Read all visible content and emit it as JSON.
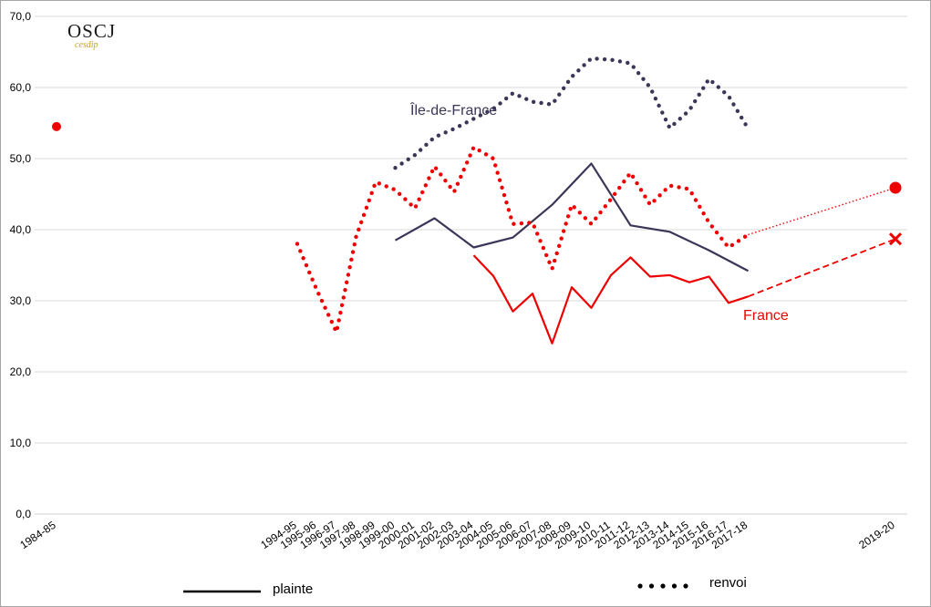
{
  "logo": {
    "main": "OSCJ",
    "sub": "cesdip"
  },
  "annotations": {
    "idf": "Île-de-France",
    "france": "France"
  },
  "legend": {
    "plainte": "plainte",
    "renvoi": "renvoi"
  },
  "colors": {
    "idf": "#3a3658",
    "france": "#ee0000",
    "grid": "#d9d9d9"
  },
  "chart_data": {
    "type": "line",
    "ylim": [
      0,
      70
    ],
    "yticks": [
      "0,0",
      "10,0",
      "20,0",
      "30,0",
      "40,0",
      "50,0",
      "60,0",
      "70,0"
    ],
    "categories": [
      "1984-85",
      "1994-95",
      "1995-96",
      "1996-97",
      "1997-98",
      "1998-99",
      "1999-00",
      "2000-01",
      "2001-02",
      "2002-03",
      "2003-04",
      "2004-05",
      "2005-06",
      "2006-07",
      "2007-08",
      "2008-09",
      "2009-10",
      "2010-11",
      "2011-12",
      "2012-13",
      "2013-14",
      "2014-15",
      "2015-16",
      "2016-17",
      "2017-18",
      "2019-20"
    ],
    "grid": true,
    "series": [
      {
        "name": "plainte",
        "group": "Île-de-France",
        "style": "solid",
        "color": "#3a3658",
        "points": [
          [
            "1999-00",
            38.5
          ],
          [
            "2001-02",
            41.6
          ],
          [
            "2003-04",
            37.5
          ],
          [
            "2005-06",
            38.9
          ],
          [
            "2007-08",
            43.5
          ],
          [
            "2009-10",
            49.3
          ],
          [
            "2011-12",
            40.6
          ],
          [
            "2013-14",
            39.7
          ],
          [
            "2015-16",
            37.1
          ],
          [
            "2017-18",
            34.2
          ]
        ]
      },
      {
        "name": "renvoi",
        "group": "Île-de-France",
        "style": "dotted",
        "color": "#3a3658",
        "points": [
          [
            "1999-00",
            48.7
          ],
          [
            "2000-01",
            50.5
          ],
          [
            "2001-02",
            53.0
          ],
          [
            "2002-03",
            54.2
          ],
          [
            "2003-04",
            55.6
          ],
          [
            "2004-05",
            57.0
          ],
          [
            "2005-06",
            59.2
          ],
          [
            "2006-07",
            58.0
          ],
          [
            "2007-08",
            57.6
          ],
          [
            "2008-09",
            61.5
          ],
          [
            "2009-10",
            64.1
          ],
          [
            "2010-11",
            63.9
          ],
          [
            "2011-12",
            63.4
          ],
          [
            "2012-13",
            60.0
          ],
          [
            "2013-14",
            54.3
          ],
          [
            "2014-15",
            56.8
          ],
          [
            "2015-16",
            61.2
          ],
          [
            "2016-17",
            58.8
          ],
          [
            "2017-18",
            54.2
          ]
        ]
      },
      {
        "name": "plainte",
        "group": "France",
        "style": "solid",
        "color": "#ee0000",
        "points": [
          [
            "2003-04",
            36.4
          ],
          [
            "2004-05",
            33.5
          ],
          [
            "2005-06",
            28.5
          ],
          [
            "2006-07",
            31.0
          ],
          [
            "2007-08",
            24.0
          ],
          [
            "2008-09",
            31.9
          ],
          [
            "2009-10",
            29.0
          ],
          [
            "2010-11",
            33.6
          ],
          [
            "2011-12",
            36.1
          ],
          [
            "2012-13",
            33.4
          ],
          [
            "2013-14",
            33.6
          ],
          [
            "2014-15",
            32.6
          ],
          [
            "2015-16",
            33.4
          ],
          [
            "2016-17",
            29.7
          ],
          [
            "2017-18",
            30.6
          ]
        ]
      },
      {
        "name": "renvoi",
        "group": "France",
        "style": "dotted",
        "color": "#ee0000",
        "points": [
          [
            "1994-95",
            38.0
          ],
          [
            "1995-96",
            31.5
          ],
          [
            "1996-97",
            25.6
          ],
          [
            "1997-98",
            39.0
          ],
          [
            "1998-99",
            46.7
          ],
          [
            "1999-00",
            45.6
          ],
          [
            "2000-01",
            43.0
          ],
          [
            "2001-02",
            48.9
          ],
          [
            "2002-03",
            45.3
          ],
          [
            "2003-04",
            51.6
          ],
          [
            "2004-05",
            50.0
          ],
          [
            "2005-06",
            40.8
          ],
          [
            "2006-07",
            41.0
          ],
          [
            "2007-08",
            34.5
          ],
          [
            "2008-09",
            43.5
          ],
          [
            "2009-10",
            40.8
          ],
          [
            "2010-11",
            44.3
          ],
          [
            "2011-12",
            48.0
          ],
          [
            "2012-13",
            43.5
          ],
          [
            "2013-14",
            46.2
          ],
          [
            "2014-15",
            45.7
          ],
          [
            "2015-16",
            41.0
          ],
          [
            "2016-17",
            37.5
          ],
          [
            "2017-18",
            39.3
          ]
        ]
      }
    ],
    "markers": [
      {
        "group": "France",
        "kind": "renvoi",
        "shape": "dot",
        "x": "1984-85",
        "y": 54.5,
        "color": "#ee0000"
      },
      {
        "group": "France",
        "kind": "renvoi",
        "shape": "dot",
        "x": "2019-20",
        "y": 45.9,
        "color": "#ee0000"
      },
      {
        "group": "France",
        "kind": "plainte",
        "shape": "cross",
        "x": "2019-20",
        "y": 38.7,
        "color": "#ee0000"
      }
    ],
    "connectors": [
      {
        "group": "France",
        "kind": "renvoi",
        "style": "dotted",
        "from": [
          "2017-18",
          39.3
        ],
        "to": [
          "2019-20",
          45.9
        ]
      },
      {
        "group": "France",
        "kind": "plainte",
        "style": "dashed",
        "from": [
          "2017-18",
          30.6
        ],
        "to": [
          "2019-20",
          38.7
        ]
      }
    ]
  }
}
